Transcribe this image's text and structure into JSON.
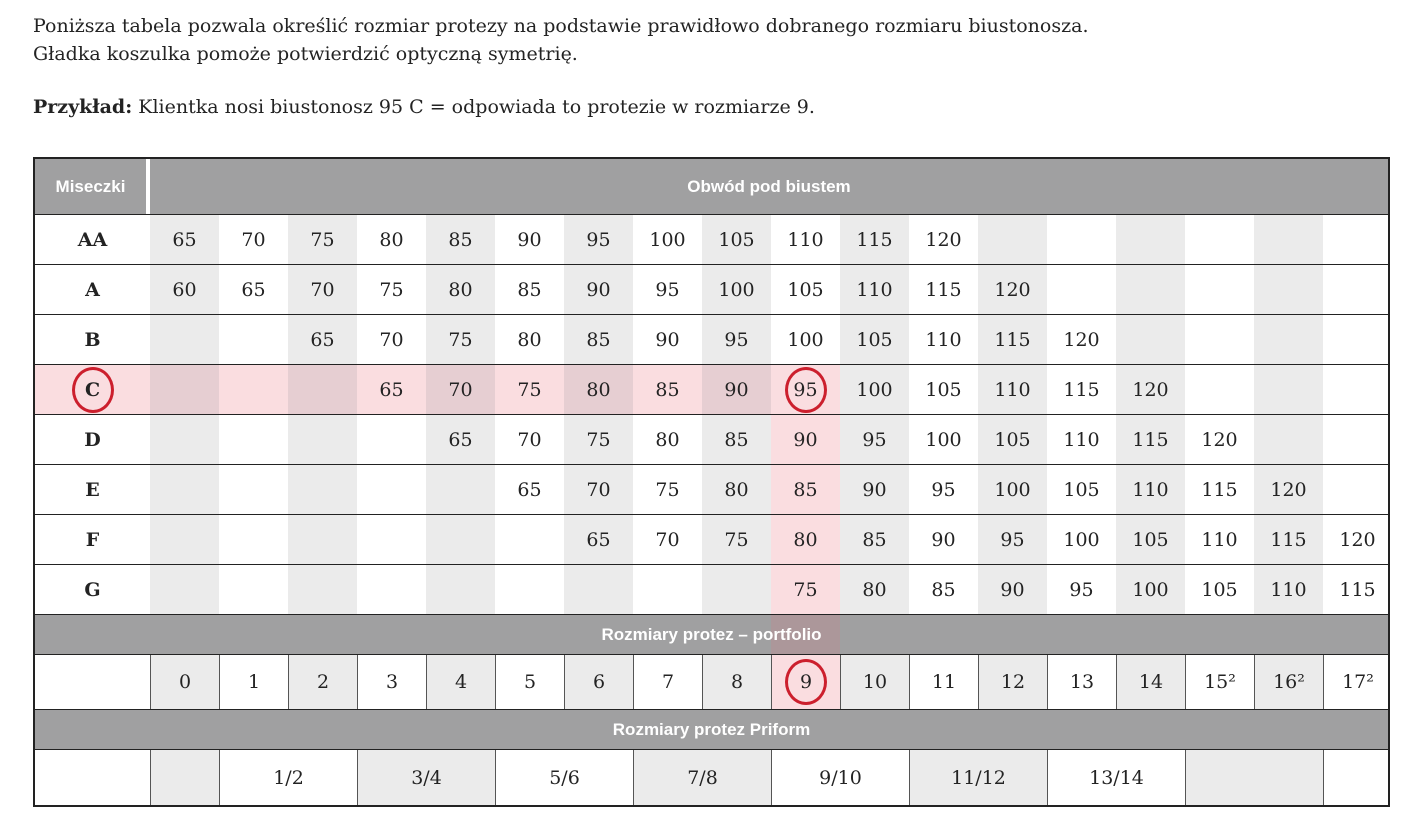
{
  "intro": {
    "line1": "Poniższa tabela pozwala określić rozmiar protezy na podstawie prawidłowo dobranego rozmiaru biustonosza.",
    "line2": "Gładka koszulka pomoże potwierdzić optyczną symetrię.",
    "example_label": "Przykład:",
    "example_text": " Klientka nosi biustonosz 95 C = odpowiada to protezie w rozmiarze 9."
  },
  "table": {
    "header": {
      "cups_label": "Miseczki",
      "band_label": "Obwód pod biustem"
    },
    "cup_rows": [
      {
        "cup": "AA",
        "values": [
          "65",
          "70",
          "75",
          "80",
          "85",
          "90",
          "95",
          "100",
          "105",
          "110",
          "115",
          "120",
          "",
          "",
          "",
          "",
          "",
          ""
        ]
      },
      {
        "cup": "A",
        "values": [
          "60",
          "65",
          "70",
          "75",
          "80",
          "85",
          "90",
          "95",
          "100",
          "105",
          "110",
          "115",
          "120",
          "",
          "",
          "",
          "",
          ""
        ]
      },
      {
        "cup": "B",
        "values": [
          "",
          "",
          "65",
          "70",
          "75",
          "80",
          "85",
          "90",
          "95",
          "100",
          "105",
          "110",
          "115",
          "120",
          "",
          "",
          "",
          ""
        ]
      },
      {
        "cup": "C",
        "values": [
          "",
          "",
          "",
          "65",
          "70",
          "75",
          "80",
          "85",
          "90",
          "95",
          "100",
          "105",
          "110",
          "115",
          "120",
          "",
          "",
          ""
        ]
      },
      {
        "cup": "D",
        "values": [
          "",
          "",
          "",
          "",
          "65",
          "70",
          "75",
          "80",
          "85",
          "90",
          "95",
          "100",
          "105",
          "110",
          "115",
          "120",
          "",
          ""
        ]
      },
      {
        "cup": "E",
        "values": [
          "",
          "",
          "",
          "",
          "",
          "65",
          "70",
          "75",
          "80",
          "85",
          "90",
          "95",
          "100",
          "105",
          "110",
          "115",
          "120",
          ""
        ]
      },
      {
        "cup": "F",
        "values": [
          "",
          "",
          "",
          "",
          "",
          "",
          "65",
          "70",
          "75",
          "80",
          "85",
          "90",
          "95",
          "100",
          "105",
          "110",
          "115",
          "120"
        ]
      },
      {
        "cup": "G",
        "values": [
          "",
          "",
          "",
          "",
          "",
          "",
          "",
          "",
          "",
          "75",
          "80",
          "85",
          "90",
          "95",
          "100",
          "105",
          "110",
          "115"
        ]
      }
    ],
    "highlight": {
      "cup": "C",
      "col": 10,
      "circled_cup": "C",
      "circled_value": "95",
      "circled_size": "9"
    },
    "portfolio_band_label": "Rozmiary protez – portfolio",
    "portfolio_sizes": [
      "0",
      "1",
      "2",
      "3",
      "4",
      "5",
      "6",
      "7",
      "8",
      "9",
      "10",
      "11",
      "12",
      "13",
      "14",
      "15²",
      "16²",
      "17²"
    ],
    "priform_band_label": "Rozmiary protez Priform",
    "priform_groups": [
      {
        "label": "",
        "span": 1,
        "shade": "gray"
      },
      {
        "label": "1/2",
        "span": 2,
        "shade": "white"
      },
      {
        "label": "3/4",
        "span": 2,
        "shade": "gray"
      },
      {
        "label": "5/6",
        "span": 2,
        "shade": "white"
      },
      {
        "label": "7/8",
        "span": 2,
        "shade": "gray"
      },
      {
        "label": "9/10",
        "span": 2,
        "shade": "white"
      },
      {
        "label": "11/12",
        "span": 2,
        "shade": "gray"
      },
      {
        "label": "13/14",
        "span": 2,
        "shade": "white"
      },
      {
        "label": "",
        "span": 2,
        "shade": "gray"
      },
      {
        "label": "",
        "span": 1,
        "shade": "white"
      }
    ]
  },
  "colors": {
    "band_gray": "#a0a0a1",
    "column_gray": "#ebebeb",
    "highlight_pink": "#fadde0",
    "highlight_pink_on_gray": "#e6ced2",
    "highlight_pink_on_band": "#ac979a",
    "circle_red": "#cc1f2d",
    "border_dark": "#222222"
  }
}
